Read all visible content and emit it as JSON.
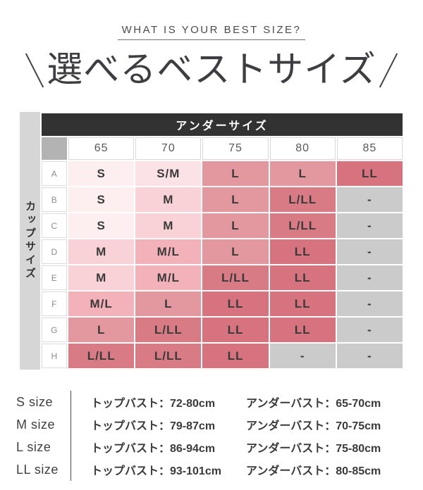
{
  "header": {
    "eyebrow": "WHAT IS YOUR BEST SIZE?",
    "icons": {
      "left_slash_icon": "\\",
      "right_slash_icon": "/"
    }
  },
  "chart_data": {
    "type": "table",
    "title": "選べるベストサイズ",
    "subtitle": "WHAT IS YOUR BEST SIZE?",
    "x_axis_label": "アンダーサイズ",
    "y_axis_label": "カップサイズ",
    "columns": [
      "65",
      "70",
      "75",
      "80",
      "85"
    ],
    "rows": [
      {
        "cup": "A",
        "values": [
          "S",
          "S/M",
          "L",
          "L",
          "LL"
        ]
      },
      {
        "cup": "B",
        "values": [
          "S",
          "M",
          "L",
          "L/LL",
          "-"
        ]
      },
      {
        "cup": "C",
        "values": [
          "S",
          "M",
          "L",
          "L/LL",
          "-"
        ]
      },
      {
        "cup": "D",
        "values": [
          "M",
          "M/L",
          "L",
          "LL",
          "-"
        ]
      },
      {
        "cup": "E",
        "values": [
          "M",
          "M/L",
          "L/LL",
          "LL",
          "-"
        ]
      },
      {
        "cup": "F",
        "values": [
          "M/L",
          "L",
          "LL",
          "LL",
          "-"
        ]
      },
      {
        "cup": "G",
        "values": [
          "L",
          "L/LL",
          "LL",
          "LL",
          "-"
        ]
      },
      {
        "cup": "H",
        "values": [
          "L/LL",
          "L/LL",
          "LL",
          "-",
          "-"
        ]
      }
    ],
    "color_scale": {
      "S": "#fdeef0",
      "S/M": "#fbe2e6",
      "M": "#f9d2d8",
      "M/L": "#f3b1b9",
      "L": "#e3989f",
      "L/LL": "#d87b85",
      "LL": "#d6737e",
      "-": "#cbcbcb"
    },
    "theme": {
      "header_bar_bg": "#323232",
      "header_bar_text": "#ffffff",
      "corner_cell_bg": "#b3b3b3",
      "cup_band_bg": "#d6d6d6",
      "cell_text": "#3a3a3a"
    }
  },
  "legend": {
    "rows": [
      {
        "label": "S size",
        "top_bust": "トップバスト：72-80cm",
        "under_bust": "アンダーバスト：65-70cm"
      },
      {
        "label": "M size",
        "top_bust": "トップバスト：79-87cm",
        "under_bust": "アンダーバスト：70-75cm"
      },
      {
        "label": "L size",
        "top_bust": "トップバスト：86-94cm",
        "under_bust": "アンダーバスト：75-80cm"
      },
      {
        "label": "LL size",
        "top_bust": "トップバスト：93-101cm",
        "under_bust": "アンダーバスト：80-85cm"
      }
    ]
  }
}
